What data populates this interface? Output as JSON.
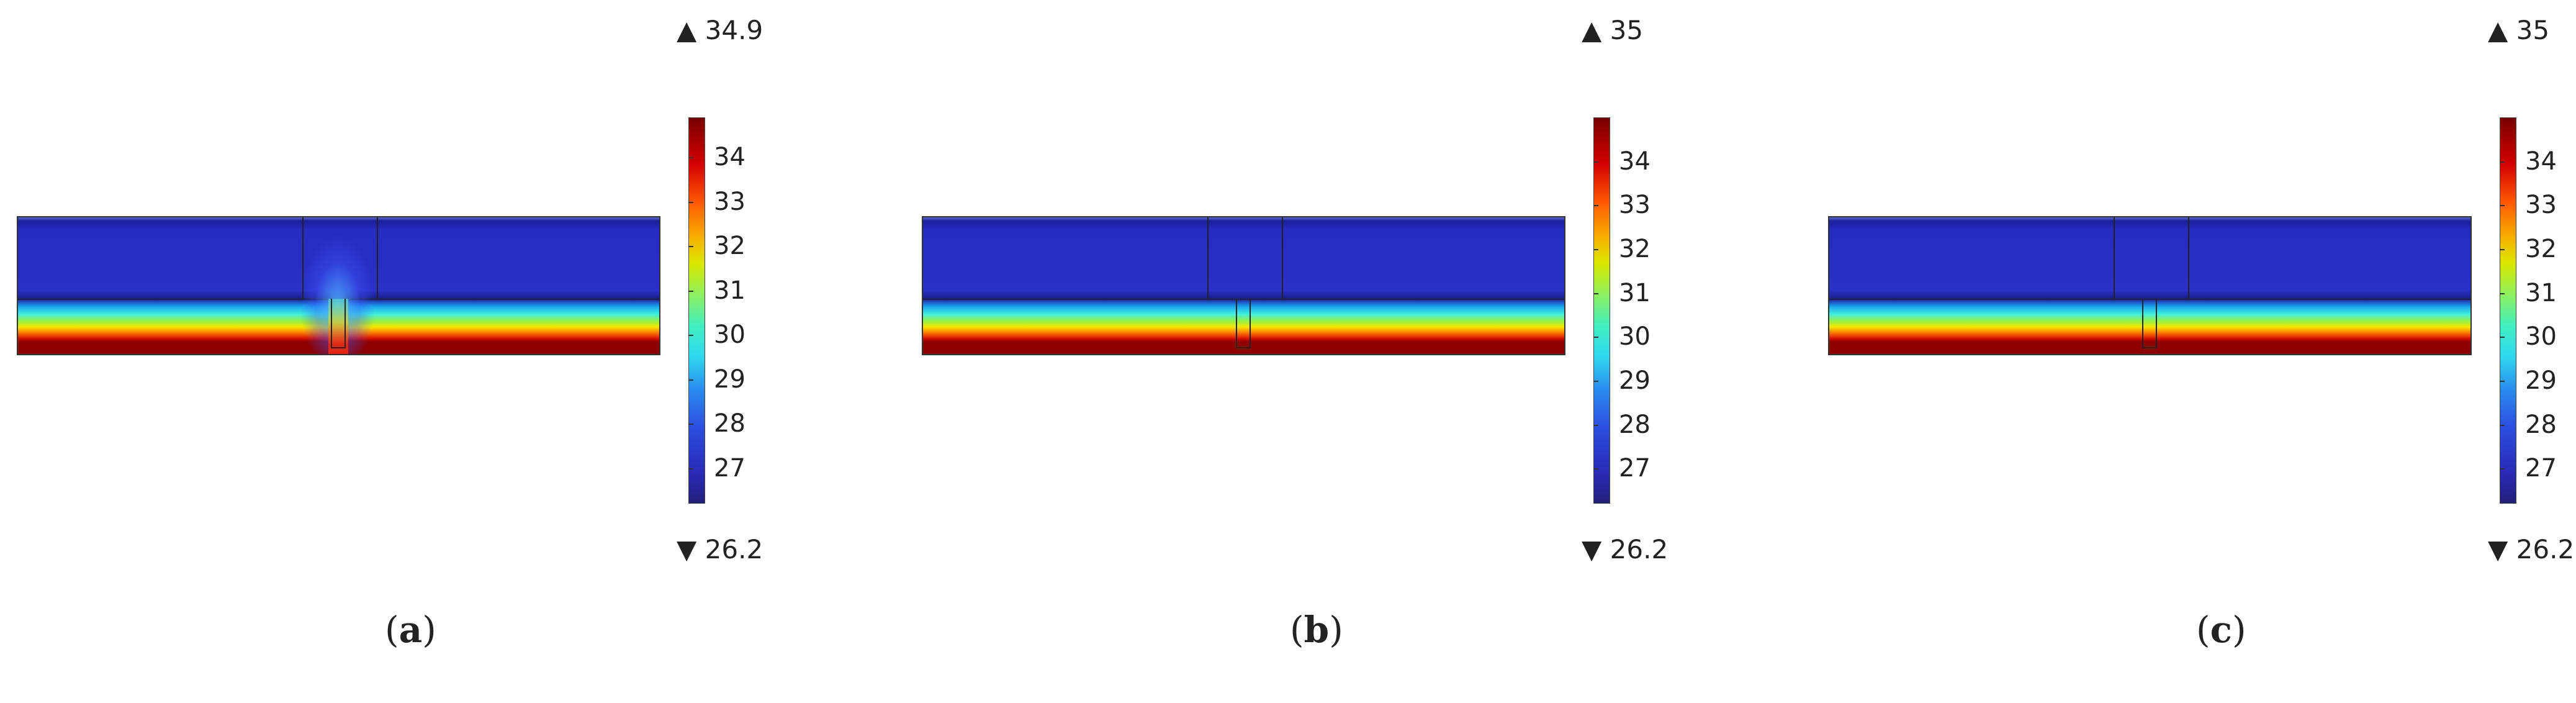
{
  "chart_data": [
    {
      "type": "heatmap",
      "panel": "a",
      "colorbar": {
        "max_label": "34.9",
        "min_label": "26.2",
        "max": 34.9,
        "min": 26.2,
        "ticks": [
          "27",
          "28",
          "29",
          "30",
          "31",
          "32",
          "33",
          "34"
        ],
        "colormap": "rainbow"
      },
      "caption_letter": "a",
      "hotspot": true
    },
    {
      "type": "heatmap",
      "panel": "b",
      "colorbar": {
        "max_label": "35",
        "min_label": "26.2",
        "max": 35,
        "min": 26.2,
        "ticks": [
          "27",
          "28",
          "29",
          "30",
          "31",
          "32",
          "33",
          "34"
        ],
        "colormap": "rainbow"
      },
      "caption_letter": "b",
      "hotspot": false
    },
    {
      "type": "heatmap",
      "panel": "c",
      "colorbar": {
        "max_label": "35",
        "min_label": "26.2",
        "max": 35,
        "min": 26.2,
        "ticks": [
          "27",
          "28",
          "29",
          "30",
          "31",
          "32",
          "33",
          "34"
        ],
        "colormap": "rainbow"
      },
      "caption_letter": "c",
      "hotspot": false
    }
  ],
  "colors": {
    "cold": "#262cc0",
    "hot": "#8a0000"
  }
}
